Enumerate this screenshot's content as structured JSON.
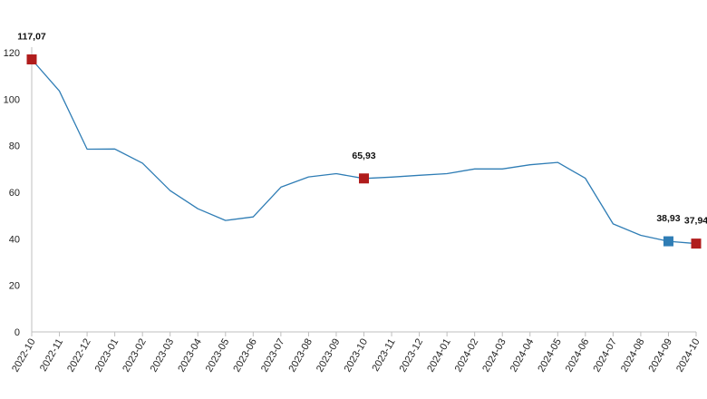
{
  "chart_data": {
    "type": "line",
    "title": "",
    "xlabel": "",
    "ylabel": "",
    "ylim": [
      0,
      120
    ],
    "yticks": [
      0,
      20,
      40,
      60,
      80,
      100,
      120
    ],
    "grid": false,
    "legend": "none",
    "categories": [
      "2022-10",
      "2022-11",
      "2022-12",
      "2023-01",
      "2023-02",
      "2023-03",
      "2023-04",
      "2023-05",
      "2023-06",
      "2023-07",
      "2023-08",
      "2023-09",
      "2023-10",
      "2023-11",
      "2023-12",
      "2024-01",
      "2024-02",
      "2024-03",
      "2024-04",
      "2024-05",
      "2024-06",
      "2024-07",
      "2024-08",
      "2024-09",
      "2024-10"
    ],
    "series": [
      {
        "values": [
          117.07,
          103.5,
          78.5,
          78.6,
          72.5,
          60.7,
          52.9,
          47.9,
          49.4,
          62.2,
          66.6,
          68.0,
          65.93,
          66.5,
          67.3,
          68.0,
          70.0,
          70.0,
          71.8,
          72.8,
          66.0,
          46.4,
          41.5,
          38.93,
          37.94
        ],
        "color": "#2f7db5"
      }
    ],
    "highlighted_points": [
      {
        "index": 0,
        "label": "117,07",
        "color": "#b01c1c"
      },
      {
        "index": 12,
        "label": "65,93",
        "color": "#b01c1c"
      },
      {
        "index": 23,
        "label": "38,93",
        "color": "#2f7db5"
      },
      {
        "index": 24,
        "label": "37,94",
        "color": "#b01c1c"
      }
    ],
    "axis_color": "#bfbfbf"
  }
}
